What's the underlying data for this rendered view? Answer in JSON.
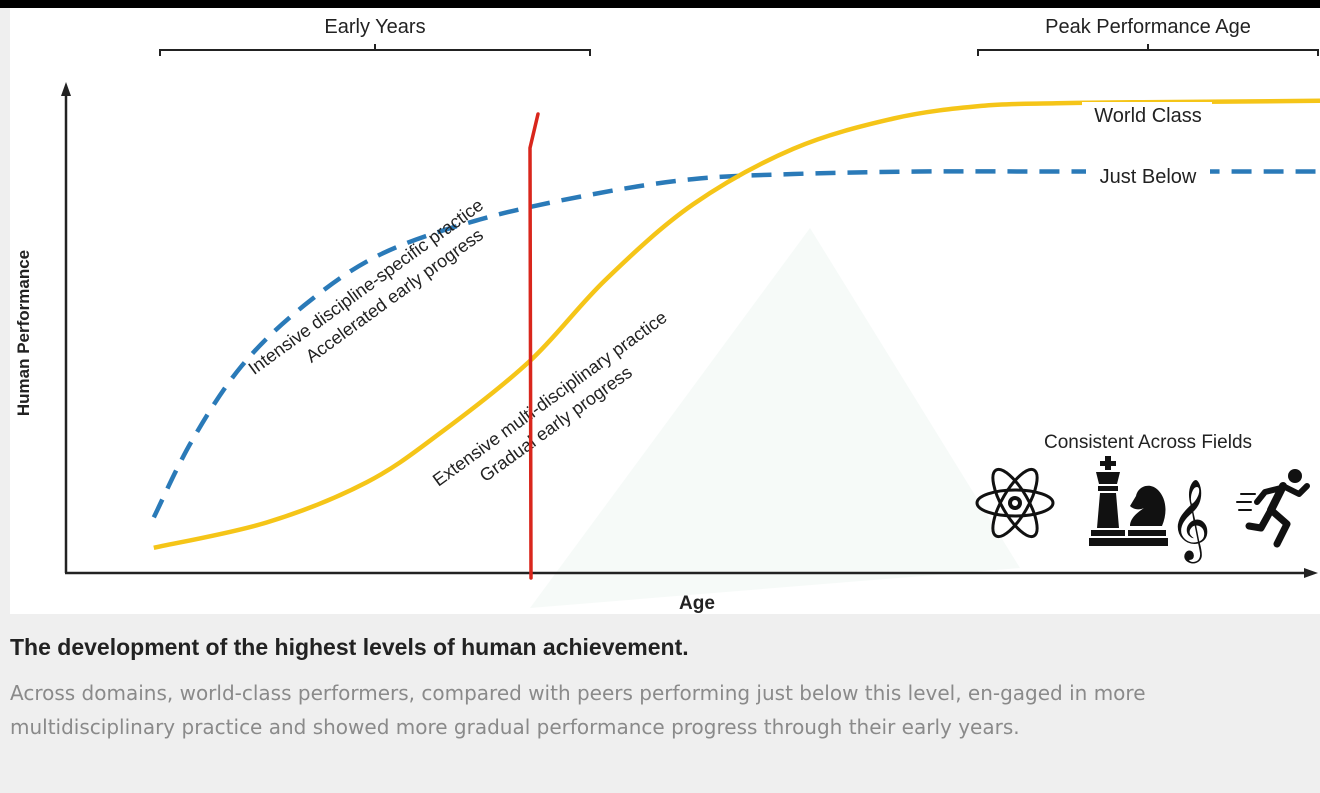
{
  "chart_data": {
    "type": "line",
    "xlabel": "Age",
    "ylabel": "Human Performance",
    "grid": false,
    "series": [
      {
        "name": "World Class",
        "color": "#f5c518",
        "style": "solid",
        "points": [
          [
            0.07,
            0.05
          ],
          [
            0.16,
            0.1
          ],
          [
            0.24,
            0.18
          ],
          [
            0.3,
            0.28
          ],
          [
            0.37,
            0.42
          ],
          [
            0.43,
            0.58
          ],
          [
            0.5,
            0.73
          ],
          [
            0.58,
            0.84
          ],
          [
            0.66,
            0.9
          ],
          [
            0.73,
            0.925
          ],
          [
            0.79,
            0.93
          ],
          [
            0.85,
            0.932
          ],
          [
            1.0,
            0.935
          ]
        ]
      },
      {
        "name": "Just Below",
        "color": "#2a7ab8",
        "style": "dashed",
        "points": [
          [
            0.07,
            0.11
          ],
          [
            0.1,
            0.26
          ],
          [
            0.14,
            0.41
          ],
          [
            0.19,
            0.53
          ],
          [
            0.25,
            0.63
          ],
          [
            0.33,
            0.7
          ],
          [
            0.42,
            0.75
          ],
          [
            0.5,
            0.78
          ],
          [
            0.58,
            0.79
          ],
          [
            0.68,
            0.795
          ],
          [
            0.79,
            0.795
          ],
          [
            1.0,
            0.795
          ]
        ]
      }
    ],
    "brackets": [
      {
        "label": "Early Years",
        "from": 0.07,
        "to": 0.425
      },
      {
        "label": "Peak Performance Age",
        "from": 0.755,
        "to": 1.0
      }
    ],
    "annotations": [
      {
        "lines": [
          "Intensive discipline-specific practice",
          "Accelerated early progress"
        ]
      },
      {
        "lines": [
          "Extensive multi-disciplinary practice",
          "Gradual early progress"
        ]
      }
    ],
    "icons_heading": "Consistent Across Fields",
    "icons": [
      "atom-icon",
      "chess-pieces-icon",
      "treble-clef-icon",
      "runner-icon"
    ],
    "marker_color": "#d9261c"
  },
  "caption": {
    "title": "The development of the highest levels of human achievement.",
    "body": "Across domains, world-class performers, compared with peers performing just below this level, en-gaged in more multidisciplinary practice and showed more gradual performance progress through their early years."
  }
}
